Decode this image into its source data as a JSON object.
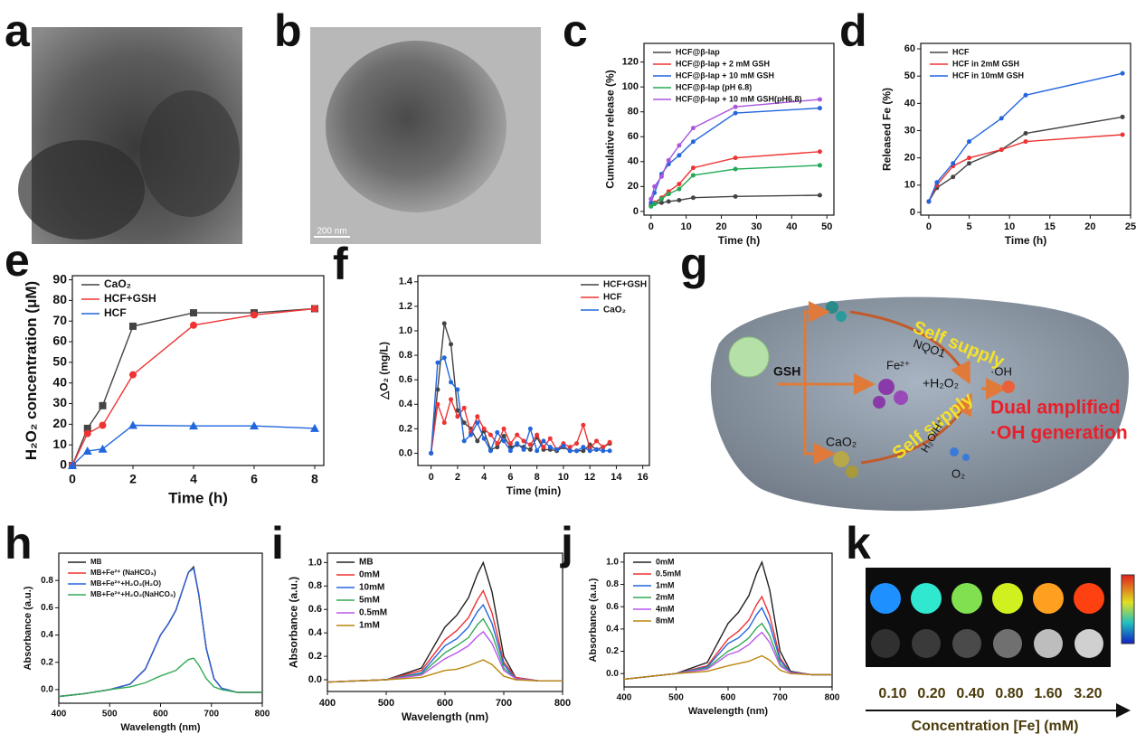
{
  "panel_labels": [
    "a",
    "b",
    "c",
    "d",
    "e",
    "f",
    "g",
    "h",
    "i",
    "j",
    "k"
  ],
  "micrograph": {
    "scale_bar": "200 nm"
  },
  "scheme": {
    "self_supply_1": "Self supply",
    "nqo1": "NQO1",
    "gsh": "GSH",
    "fe": "Fe²⁺",
    "h2o2": "+H₂O₂",
    "oh": "·OH",
    "dual_1": "Dual amplified",
    "dual_2": "·OH generation",
    "cao2": "CaO₂",
    "self_supply_2": "Self supply",
    "h2o_h": "H₂O/H⁺",
    "o2": "O₂"
  },
  "mri": {
    "concentrations": [
      "0.10",
      "0.20",
      "0.40",
      "0.80",
      "1.60",
      "3.20"
    ],
    "axis_label": "Concentration [Fe] (mM)"
  },
  "chart_data": [
    {
      "type": "line",
      "xlabel": "Time (h)",
      "ylabel": "Cumulative release (%)",
      "x": [
        0,
        1,
        3,
        5,
        8,
        12,
        24,
        48
      ],
      "xlim": [
        -2,
        52
      ],
      "ylim": [
        -3,
        135
      ],
      "xticks": [
        0,
        10,
        20,
        30,
        40,
        50
      ],
      "yticks": [
        0,
        20,
        40,
        60,
        80,
        100,
        120
      ],
      "markers": true,
      "legend": "upper left",
      "series": [
        {
          "name": "HCF@β-lap",
          "color": "#444444",
          "values": [
            5,
            6,
            7,
            8,
            9,
            11,
            12,
            13
          ]
        },
        {
          "name": "HCF@β-lap + 2 mM GSH",
          "color": "#ee3333",
          "values": [
            5,
            7,
            11,
            16,
            22,
            35,
            43,
            48
          ]
        },
        {
          "name": "HCF@β-lap + 10 mM GSH",
          "color": "#2266dd",
          "values": [
            7,
            15,
            30,
            38,
            45,
            56,
            79,
            83
          ]
        },
        {
          "name": "HCF@β-lap (pH 6.8)",
          "color": "#22aa55",
          "values": [
            4,
            6,
            10,
            14,
            18,
            29,
            34,
            37
          ]
        },
        {
          "name": "HCF@β-lap + 10 mM GSH(pH6.8)",
          "color": "#aa55dd",
          "values": [
            10,
            20,
            28,
            41,
            53,
            67,
            84,
            90
          ]
        }
      ]
    },
    {
      "type": "line",
      "xlabel": "Time (h)",
      "ylabel": "Released Fe (%)",
      "x": [
        0,
        1,
        3,
        5,
        9,
        12,
        24
      ],
      "xlim": [
        -1,
        25
      ],
      "ylim": [
        -1,
        62
      ],
      "xticks": [
        0,
        5,
        10,
        15,
        20,
        25
      ],
      "yticks": [
        0,
        10,
        20,
        30,
        40,
        50,
        60
      ],
      "markers": true,
      "legend": "upper left",
      "series": [
        {
          "name": "HCF",
          "color": "#444444",
          "values": [
            4,
            9,
            13,
            18,
            23,
            29,
            35
          ]
        },
        {
          "name": "HCF in 2mM GSH",
          "color": "#ee3333",
          "values": [
            4,
            10,
            17,
            20,
            23,
            26,
            28.5
          ]
        },
        {
          "name": "HCF in 10mM GSH",
          "color": "#2266dd",
          "values": [
            4,
            11,
            18,
            26,
            34.5,
            43,
            51
          ]
        }
      ]
    },
    {
      "type": "line",
      "xlabel": "Time (h)",
      "ylabel": "H₂O₂ concentration (μM)",
      "x": [
        0,
        0.5,
        1,
        2,
        4,
        6,
        8
      ],
      "xlim": [
        0,
        8.3
      ],
      "ylim": [
        0,
        92
      ],
      "xticks": [
        0,
        2,
        4,
        6,
        8
      ],
      "yticks": [
        0,
        10,
        20,
        30,
        40,
        50,
        60,
        70,
        80,
        90
      ],
      "markers": true,
      "legend": "upper left",
      "series": [
        {
          "name": "CaO₂",
          "color": "#444444",
          "marker": "square",
          "values": [
            0,
            18,
            29,
            67.5,
            74,
            74,
            76
          ]
        },
        {
          "name": "HCF+GSH",
          "color": "#ee3333",
          "marker": "circle",
          "values": [
            0,
            15.5,
            19.5,
            44,
            68,
            73,
            76
          ]
        },
        {
          "name": "HCF",
          "color": "#2266dd",
          "marker": "triangle",
          "values": [
            0,
            7,
            8,
            19.5,
            19.2,
            19.2,
            18
          ]
        }
      ]
    },
    {
      "type": "line",
      "xlabel": "Time (min)",
      "ylabel": "△O₂ (mg/L)",
      "x": [
        0,
        0.5,
        1,
        1.5,
        2,
        2.5,
        3,
        3.5,
        4,
        4.5,
        5,
        5.5,
        6,
        6.5,
        7,
        7.5,
        8,
        8.5,
        9,
        9.5,
        10,
        10.5,
        11,
        11.5,
        12,
        12.5,
        13,
        13.5
      ],
      "xlim": [
        -1,
        16.5
      ],
      "ylim": [
        -0.1,
        1.45
      ],
      "xticks": [
        0,
        2,
        4,
        6,
        8,
        10,
        12,
        14,
        16
      ],
      "yticks": [
        {
          "value": 0,
          "label": "0.0"
        },
        {
          "value": 0.2,
          "label": "0.2"
        },
        {
          "value": 0.4,
          "label": "0.4"
        },
        {
          "value": 0.6,
          "label": "0.6"
        },
        {
          "value": 0.8,
          "label": "0.8"
        },
        {
          "value": 1,
          "label": "1.0"
        },
        {
          "value": 1.2,
          "label": "1.2"
        },
        {
          "value": 1.4,
          "label": "1.4"
        }
      ],
      "markers": true,
      "legend": "upper right",
      "series": [
        {
          "name": "HCF+GSH",
          "color": "#444444",
          "values": [
            0,
            0.52,
            1.06,
            0.89,
            0.35,
            0.25,
            0.2,
            0.1,
            0.18,
            0.03,
            0.05,
            0.14,
            0.05,
            0.07,
            0.05,
            0.03,
            0.13,
            0.03,
            0.03,
            0.02,
            0.05,
            0.02,
            0.02,
            0.02,
            0.07,
            0.03,
            0.05,
            0.08
          ]
        },
        {
          "name": "HCF",
          "color": "#ee3333",
          "values": [
            0,
            0.4,
            0.25,
            0.44,
            0.3,
            0.37,
            0.17,
            0.3,
            0.2,
            0.15,
            0.08,
            0.2,
            0.08,
            0.15,
            0.1,
            0.07,
            0.15,
            0.05,
            0.12,
            0.03,
            0.08,
            0.05,
            0.08,
            0.23,
            0.04,
            0.1,
            0.05,
            0.09
          ]
        },
        {
          "name": "CaO₂",
          "color": "#2266dd",
          "values": [
            0,
            0.74,
            0.78,
            0.58,
            0.52,
            0.1,
            0.15,
            0.25,
            0.12,
            0.02,
            0.17,
            0.1,
            0.02,
            0.08,
            0.03,
            0.2,
            0.02,
            0.1,
            0.05,
            0.03,
            0.06,
            0.02,
            0.02,
            0.05,
            0.02,
            0.03,
            0.02,
            0.02
          ]
        }
      ]
    },
    {
      "type": "line",
      "xlabel": "Wavelength (nm)",
      "ylabel": "Absorbance (a.u.)",
      "x": [
        400,
        450,
        500,
        540,
        570,
        600,
        615,
        630,
        645,
        655,
        665,
        675,
        690,
        705,
        720,
        750,
        800
      ],
      "xlim": [
        400,
        800
      ],
      "ylim": [
        -0.1,
        1.0
      ],
      "xticks": [
        400,
        500,
        600,
        700,
        800
      ],
      "yticks": [
        {
          "value": 0,
          "label": "0.0"
        },
        {
          "value": 0.2,
          "label": "0.2"
        },
        {
          "value": 0.4,
          "label": "0.4"
        },
        {
          "value": 0.6,
          "label": "0.6"
        },
        {
          "value": 0.8,
          "label": "0.8"
        }
      ],
      "legend": "upper left",
      "series": [
        {
          "name": "MB",
          "color": "#222222",
          "values": [
            -0.05,
            -0.03,
            0.0,
            0.04,
            0.15,
            0.4,
            0.48,
            0.58,
            0.75,
            0.86,
            0.9,
            0.7,
            0.3,
            0.08,
            0.01,
            -0.02,
            -0.02
          ]
        },
        {
          "name": "MB+Fe²⁺ (NaHCO₃)",
          "color": "#ee3333",
          "values": [
            -0.05,
            -0.03,
            0.0,
            0.04,
            0.15,
            0.4,
            0.48,
            0.58,
            0.75,
            0.86,
            0.89,
            0.7,
            0.3,
            0.08,
            0.01,
            -0.02,
            -0.02
          ]
        },
        {
          "name": "MB+Fe²⁺+H₂O₂(H₂O)",
          "color": "#2266dd",
          "values": [
            -0.05,
            -0.03,
            0.0,
            0.04,
            0.15,
            0.4,
            0.48,
            0.58,
            0.75,
            0.86,
            0.89,
            0.7,
            0.3,
            0.08,
            0.01,
            -0.02,
            -0.02
          ]
        },
        {
          "name": "MB+Fe²⁺+H₂O₂(NaHCO₃)",
          "color": "#33aa55",
          "values": [
            -0.05,
            -0.03,
            0.0,
            0.02,
            0.05,
            0.1,
            0.12,
            0.14,
            0.19,
            0.22,
            0.23,
            0.18,
            0.08,
            0.02,
            0.0,
            -0.02,
            -0.02
          ]
        }
      ]
    },
    {
      "type": "line",
      "xlabel": "Wavelength (nm)",
      "ylabel": "Absorbance (a.u.)",
      "x": [
        400,
        500,
        560,
        600,
        620,
        640,
        655,
        665,
        680,
        700,
        720,
        760,
        800
      ],
      "xlim": [
        400,
        800
      ],
      "ylim": [
        -0.1,
        1.08
      ],
      "xticks": [
        400,
        500,
        600,
        700,
        800
      ],
      "yticks": [
        {
          "value": 0,
          "label": "0.0"
        },
        {
          "value": 0.2,
          "label": "0.2"
        },
        {
          "value": 0.4,
          "label": "0.4"
        },
        {
          "value": 0.6,
          "label": "0.6"
        },
        {
          "value": 0.8,
          "label": "0.8"
        },
        {
          "value": 1,
          "label": "1.0"
        }
      ],
      "legend": "upper left",
      "series": [
        {
          "name": "MB",
          "color": "#222222",
          "values": [
            -0.02,
            0.0,
            0.1,
            0.45,
            0.55,
            0.7,
            0.9,
            1.0,
            0.75,
            0.2,
            0.02,
            -0.01,
            -0.01
          ]
        },
        {
          "name": "0mM",
          "color": "#ee3333",
          "values": [
            -0.02,
            0.0,
            0.08,
            0.34,
            0.42,
            0.53,
            0.68,
            0.76,
            0.57,
            0.15,
            0.02,
            -0.01,
            -0.01
          ]
        },
        {
          "name": "10mM",
          "color": "#2266dd",
          "values": [
            -0.02,
            0.0,
            0.06,
            0.29,
            0.35,
            0.45,
            0.58,
            0.64,
            0.48,
            0.13,
            0.01,
            -0.01,
            -0.01
          ]
        },
        {
          "name": "5mM",
          "color": "#33aa55",
          "values": [
            -0.02,
            0.0,
            0.05,
            0.23,
            0.29,
            0.36,
            0.47,
            0.52,
            0.39,
            0.1,
            0.01,
            -0.01,
            -0.01
          ]
        },
        {
          "name": "0.5mM",
          "color": "#bb55ee",
          "values": [
            -0.02,
            0.0,
            0.04,
            0.18,
            0.23,
            0.29,
            0.37,
            0.41,
            0.31,
            0.08,
            0.01,
            -0.01,
            -0.01
          ]
        },
        {
          "name": "1mM",
          "color": "#b8860b",
          "values": [
            -0.02,
            0.0,
            0.02,
            0.08,
            0.09,
            0.12,
            0.15,
            0.17,
            0.13,
            0.03,
            0.0,
            -0.01,
            -0.01
          ]
        }
      ]
    },
    {
      "type": "line",
      "xlabel": "Wavelength (nm)",
      "ylabel": "Absorbance (a.u.)",
      "x": [
        400,
        500,
        560,
        600,
        620,
        640,
        655,
        665,
        680,
        700,
        720,
        760,
        800
      ],
      "xlim": [
        400,
        800
      ],
      "ylim": [
        -0.12,
        1.08
      ],
      "xticks": [
        400,
        500,
        600,
        700,
        800
      ],
      "yticks": [
        {
          "value": 0,
          "label": "0.0"
        },
        {
          "value": 0.2,
          "label": "0.2"
        },
        {
          "value": 0.4,
          "label": "0.4"
        },
        {
          "value": 0.6,
          "label": "0.6"
        },
        {
          "value": 0.8,
          "label": "0.8"
        },
        {
          "value": 1,
          "label": "1.0"
        }
      ],
      "legend": "upper left",
      "series": [
        {
          "name": "0mM",
          "color": "#222222",
          "values": [
            -0.05,
            0.0,
            0.1,
            0.45,
            0.55,
            0.7,
            0.9,
            1.0,
            0.75,
            0.2,
            0.02,
            -0.01,
            -0.01
          ]
        },
        {
          "name": "0.5mM",
          "color": "#ee3333",
          "values": [
            -0.05,
            0.0,
            0.07,
            0.31,
            0.38,
            0.48,
            0.62,
            0.69,
            0.52,
            0.14,
            0.01,
            -0.01,
            -0.01
          ]
        },
        {
          "name": "1mM",
          "color": "#2266dd",
          "values": [
            -0.05,
            0.0,
            0.06,
            0.27,
            0.32,
            0.41,
            0.53,
            0.59,
            0.44,
            0.12,
            0.01,
            -0.01,
            -0.01
          ]
        },
        {
          "name": "2mM",
          "color": "#33aa55",
          "values": [
            -0.05,
            0.0,
            0.05,
            0.2,
            0.25,
            0.32,
            0.41,
            0.45,
            0.34,
            0.09,
            0.01,
            -0.01,
            -0.01
          ]
        },
        {
          "name": "4mM",
          "color": "#bb55ee",
          "values": [
            -0.05,
            0.0,
            0.04,
            0.17,
            0.2,
            0.26,
            0.33,
            0.37,
            0.28,
            0.07,
            0.01,
            -0.01,
            -0.01
          ]
        },
        {
          "name": "8mM",
          "color": "#b8860b",
          "values": [
            -0.05,
            0.0,
            0.02,
            0.07,
            0.09,
            0.11,
            0.14,
            0.16,
            0.12,
            0.03,
            0.0,
            -0.01,
            -0.01
          ]
        }
      ]
    }
  ]
}
